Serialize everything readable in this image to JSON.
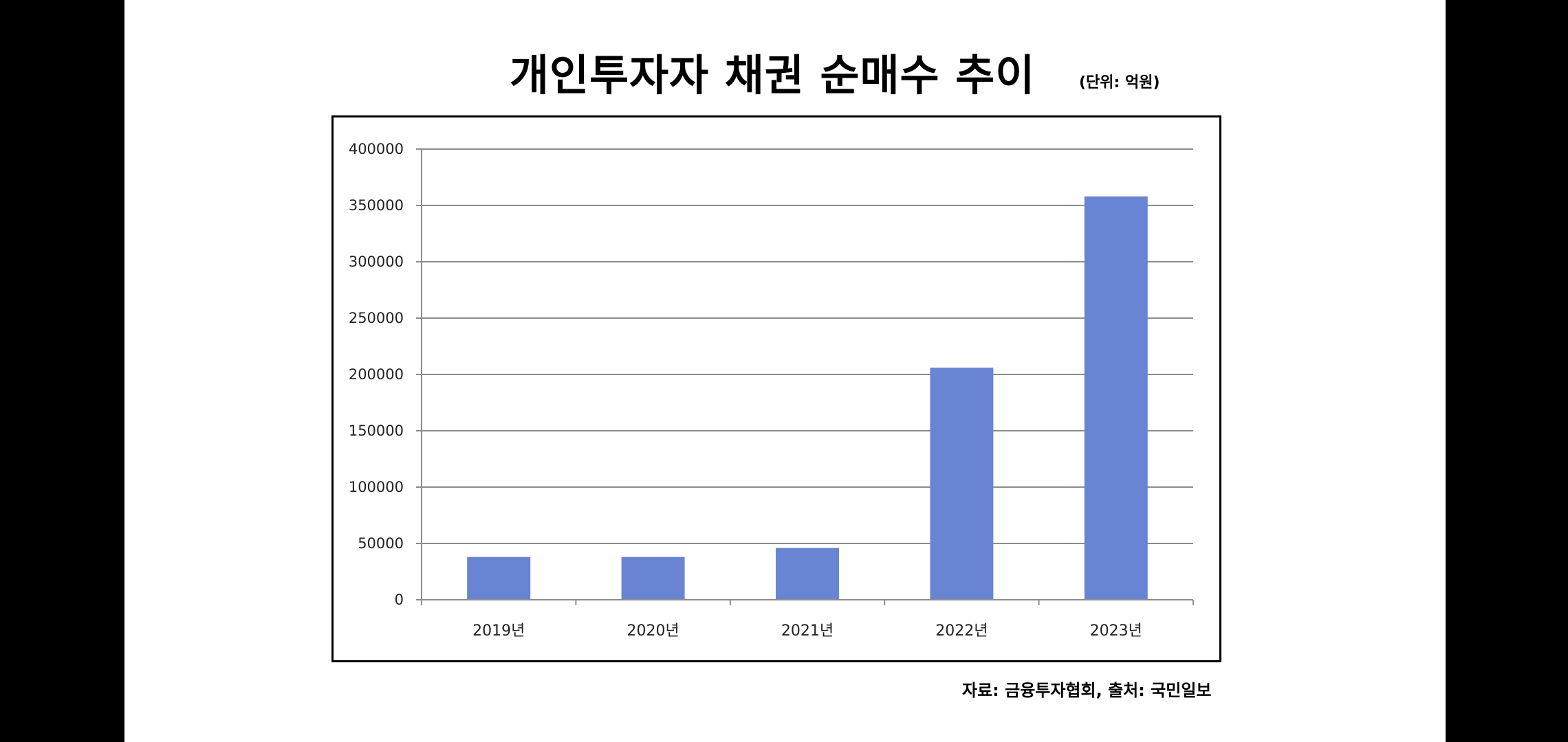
{
  "title": "개인투자자 채권 순매수 추이",
  "unit": "(단위: 억원)",
  "source": "자료: 금융투자협회, 출처: 국민일보",
  "colors": {
    "bar": "#6a84d4",
    "grid": "#8c8c8c",
    "axis": "#8c8c8c"
  },
  "chart_data": {
    "type": "bar",
    "categories": [
      "2019년",
      "2020년",
      "2021년",
      "2022년",
      "2023년"
    ],
    "values": [
      38000,
      38000,
      46000,
      206000,
      358000
    ],
    "title": "개인투자자 채권 순매수 추이",
    "xlabel": "",
    "ylabel": "",
    "ylim": [
      0,
      400000
    ],
    "yticks": [
      "0",
      "50000",
      "100000",
      "150000",
      "200000",
      "250000",
      "300000",
      "350000",
      "400000"
    ],
    "grid": true,
    "legend": "none"
  }
}
